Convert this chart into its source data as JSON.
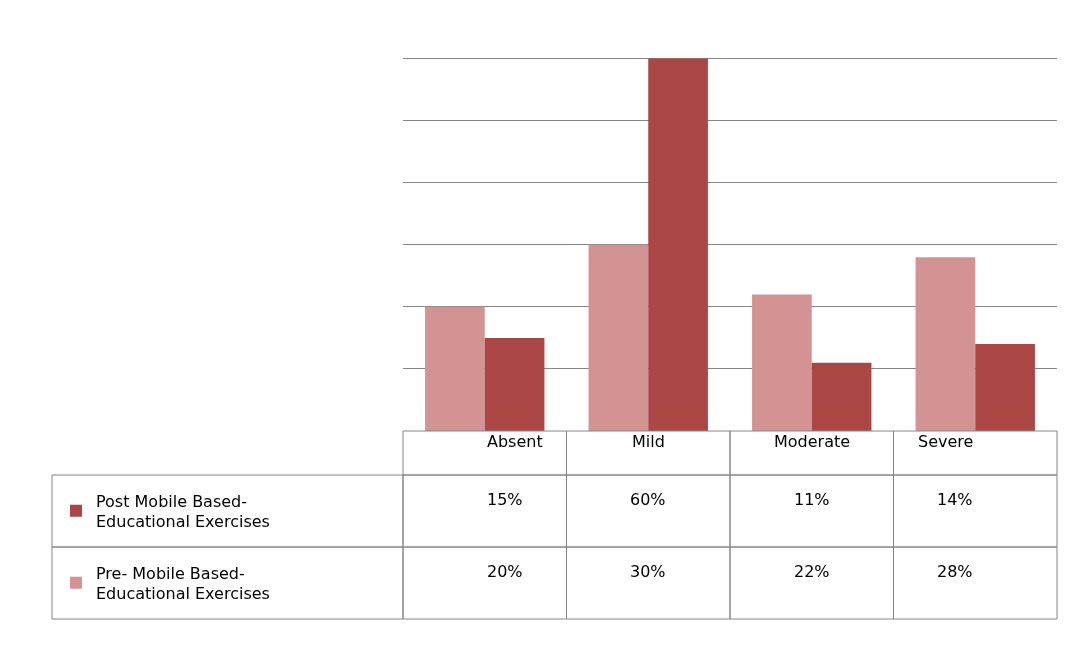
{
  "chart_data": {
    "type": "bar",
    "categories": [
      "Absent",
      "Mild",
      "Moderate",
      "Severe"
    ],
    "series": [
      {
        "name": "Pre- Mobile Based-Educational Exercises",
        "color": "#d39392",
        "values": [
          20,
          30,
          22,
          28
        ],
        "value_labels": [
          "20%",
          "30%",
          "22%",
          "28%"
        ]
      },
      {
        "name": "Post Mobile Based-Educational Exercises",
        "color": "#aa4644",
        "values": [
          15,
          60,
          11,
          14
        ],
        "value_labels": [
          "15%",
          "60%",
          "11%",
          "14%"
        ]
      }
    ],
    "grid": "y",
    "legend": "bottom left"
  }
}
